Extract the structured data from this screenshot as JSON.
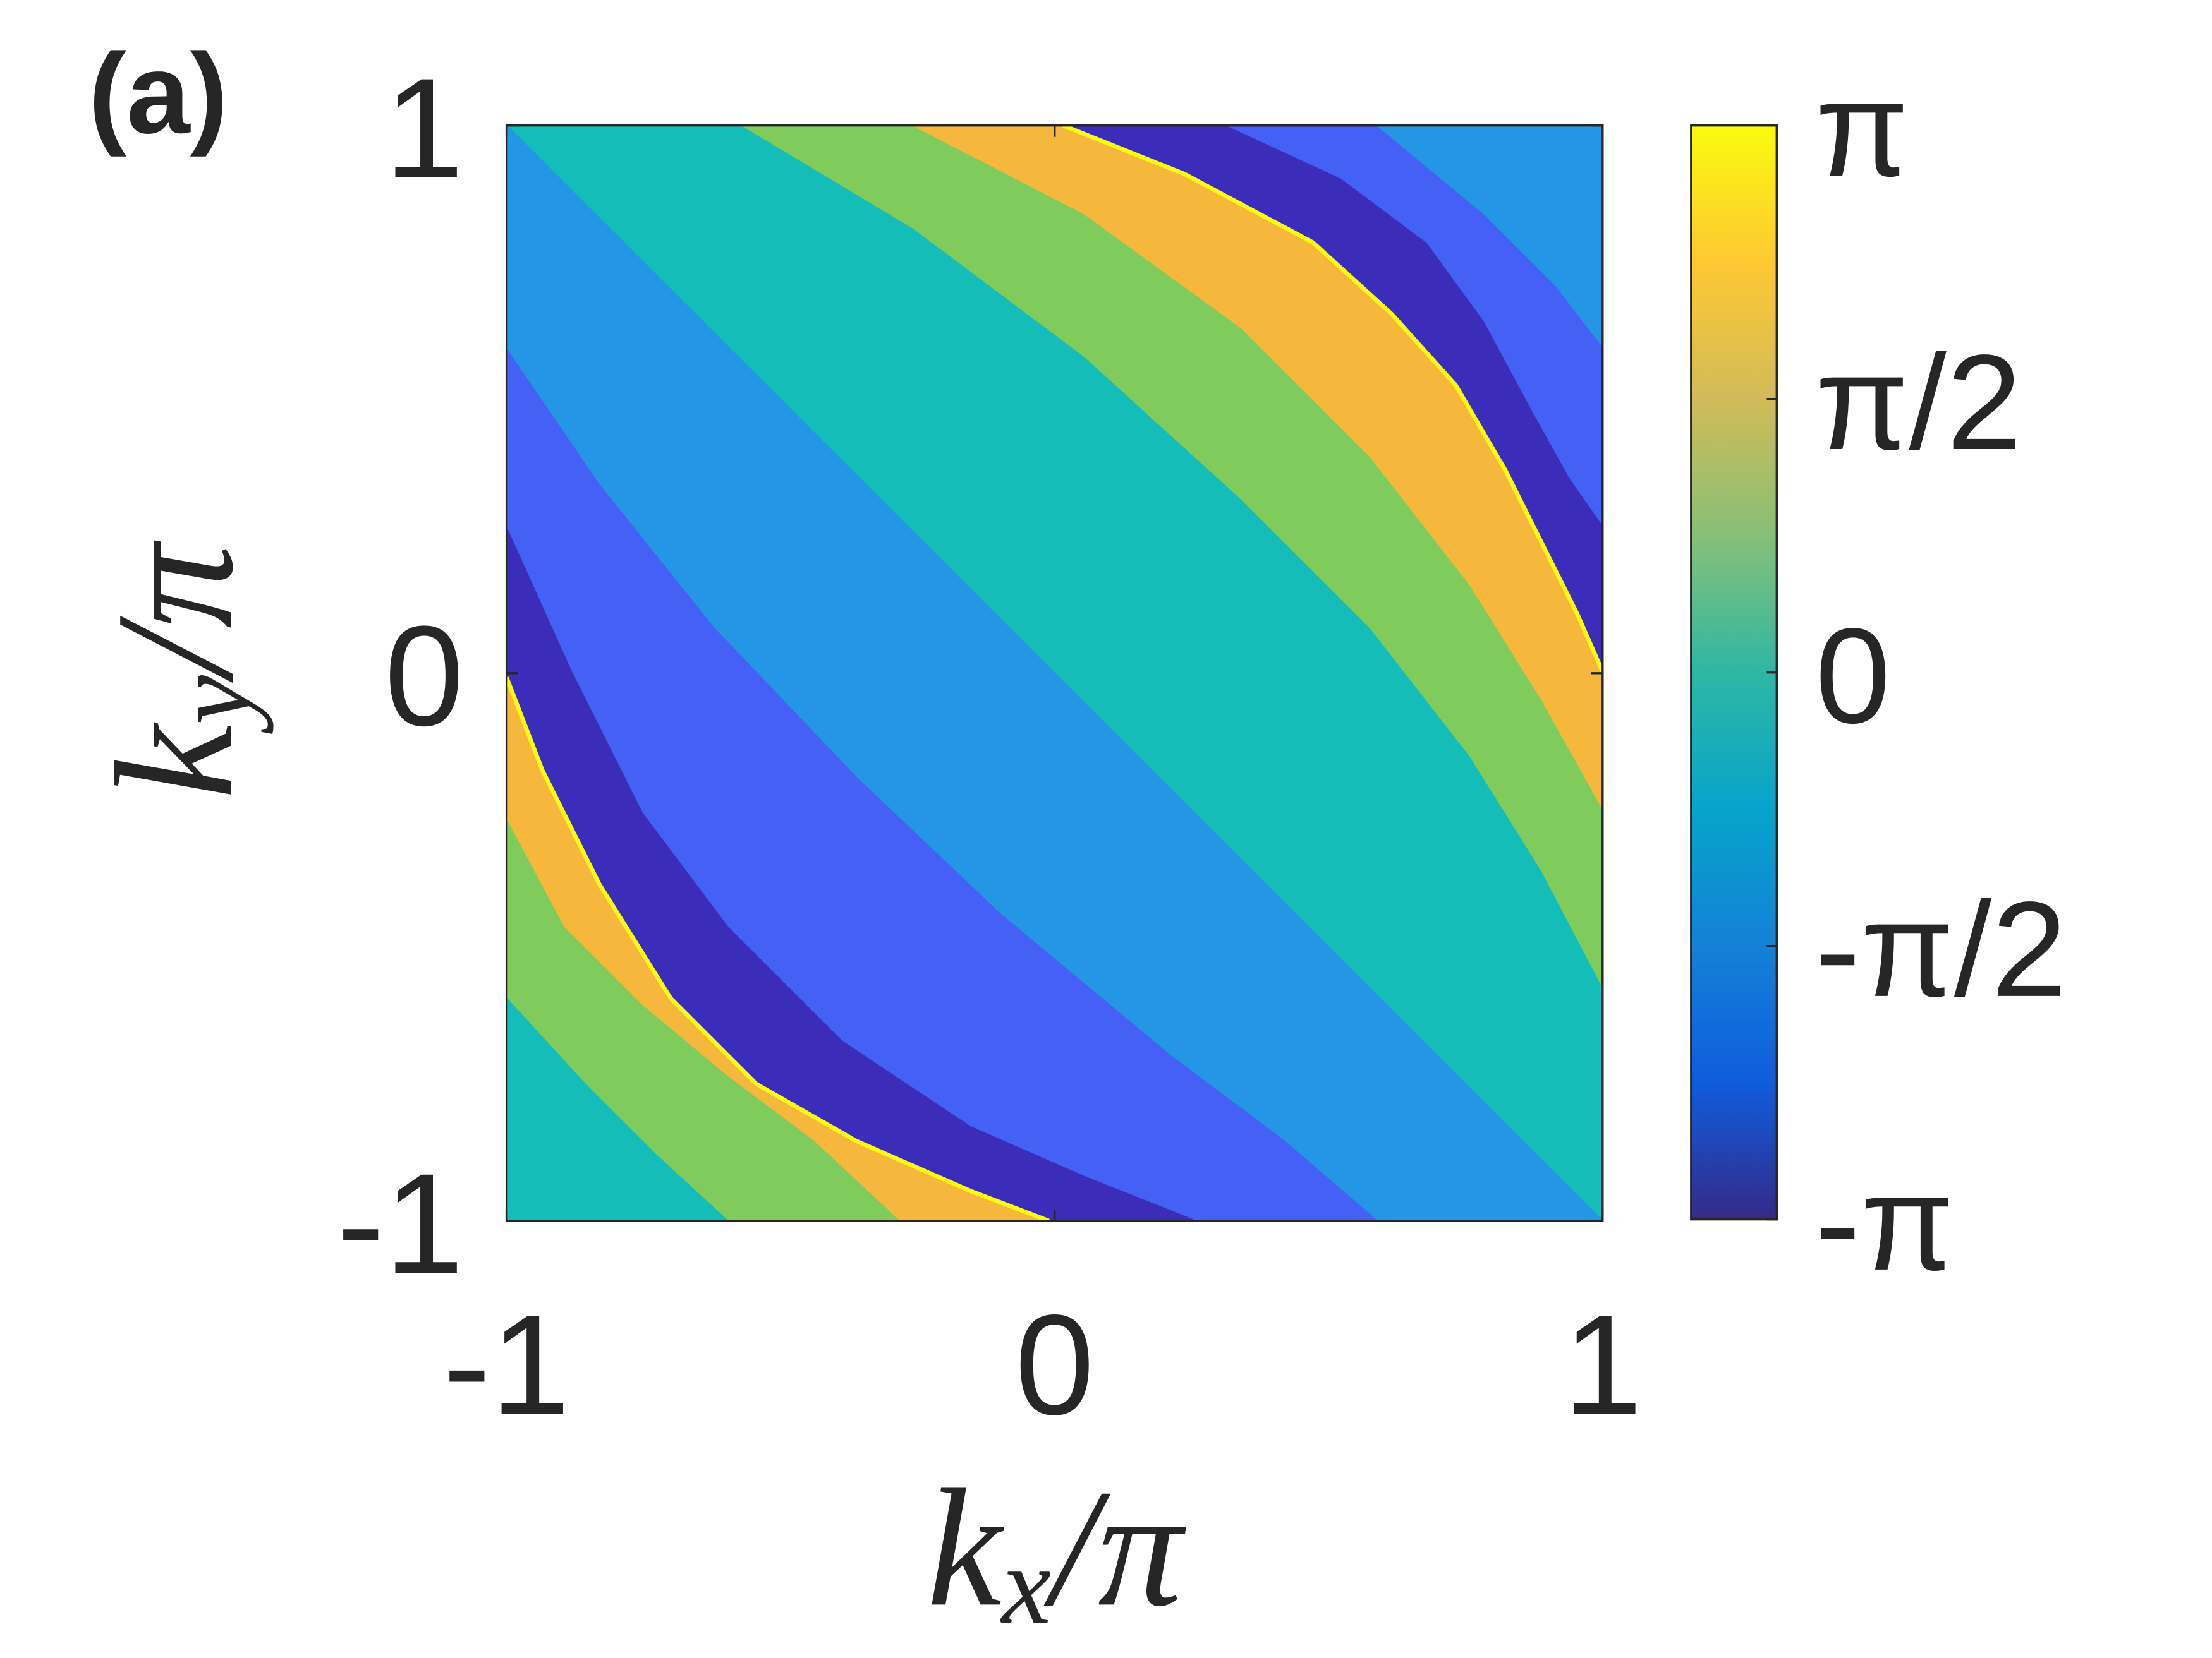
{
  "chart_data": {
    "type": "contourf",
    "panel_label": "(a)",
    "xlabel": [
      "k",
      "x",
      "/π"
    ],
    "ylabel": [
      "k",
      "y",
      "/π"
    ],
    "xlim": [
      -1,
      1
    ],
    "xticks": [
      -1,
      0,
      1
    ],
    "ylim": [
      -1,
      1
    ],
    "yticks": [
      -1,
      0,
      1
    ],
    "levels": [
      -2.7,
      -2.0,
      -1.1,
      0.2,
      1.4,
      2.4
    ],
    "level_colors": [
      "#3b2dba",
      "#4561f5",
      "#2596e5",
      "#14bdb8",
      "#7fcc5d",
      "#f5b83c"
    ],
    "zlim": [
      -3.1416,
      3.1416
    ],
    "zticks": [
      {
        "value": -3.1416,
        "label": "-π"
      },
      {
        "value": -1.5708,
        "label": "-π/2"
      },
      0,
      {
        "value": 1.5708,
        "label": "π/2"
      },
      {
        "value": 3.1416,
        "label": "π"
      }
    ],
    "colormap": [
      "#352a87",
      "#0f5cdd",
      "#1481d6",
      "#06a4ca",
      "#2eb7a4",
      "#87bf77",
      "#d1bb59",
      "#fec832",
      "#f9fb0e"
    ]
  }
}
